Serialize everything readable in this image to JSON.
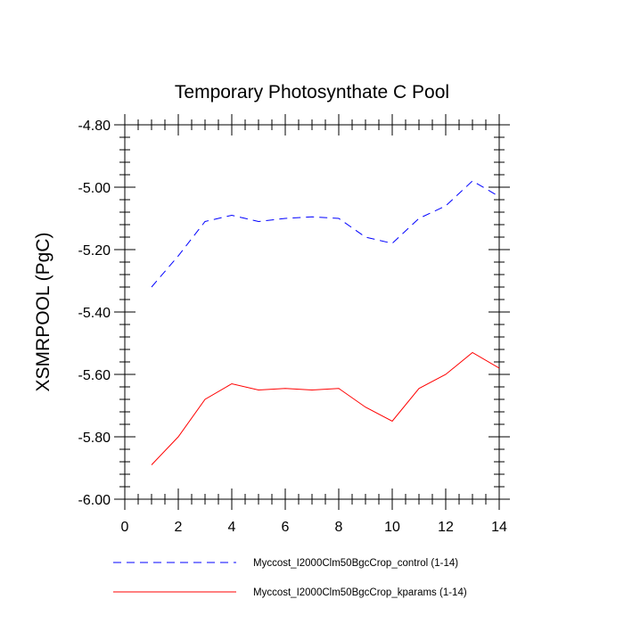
{
  "chart_data": {
    "type": "line",
    "title": "Temporary Photosynthate C Pool",
    "xlabel": "",
    "ylabel": "XSMRPOOL  (PgC)",
    "xlim": [
      0,
      14
    ],
    "ylim": [
      -6.0,
      -4.8
    ],
    "xticks": [
      0,
      2,
      4,
      6,
      8,
      10,
      12,
      14
    ],
    "xtick_labels": [
      "0",
      "2",
      "4",
      "6",
      "8",
      "10",
      "12",
      "14"
    ],
    "yticks": [
      -6.0,
      -5.8,
      -5.6,
      -5.4,
      -5.2,
      -5.0,
      -4.8
    ],
    "ytick_labels": [
      "-6.00",
      "-5.80",
      "-5.60",
      "-5.40",
      "-5.20",
      "-5.00",
      "-4.80"
    ],
    "grid": false,
    "legend_position": "bottom",
    "series": [
      {
        "name": "Myccost_I2000Clm50BgcCrop_control (1-14)",
        "color": "#0000ff",
        "style": "dashed",
        "x": [
          1,
          2,
          3,
          4,
          5,
          6,
          7,
          8,
          9,
          10,
          11,
          12,
          13,
          14
        ],
        "y": [
          -5.32,
          -5.22,
          -5.11,
          -5.09,
          -5.11,
          -5.1,
          -5.095,
          -5.1,
          -5.16,
          -5.18,
          -5.1,
          -5.06,
          -4.98,
          -5.03
        ]
      },
      {
        "name": "Myccost_I2000Clm50BgcCrop_kparams (1-14)",
        "color": "#ff0000",
        "style": "solid",
        "x": [
          1,
          2,
          3,
          4,
          5,
          6,
          7,
          8,
          9,
          10,
          11,
          12,
          13,
          14
        ],
        "y": [
          -5.89,
          -5.8,
          -5.68,
          -5.63,
          -5.65,
          -5.645,
          -5.65,
          -5.645,
          -5.705,
          -5.75,
          -5.645,
          -5.6,
          -5.53,
          -5.58
        ]
      }
    ]
  }
}
